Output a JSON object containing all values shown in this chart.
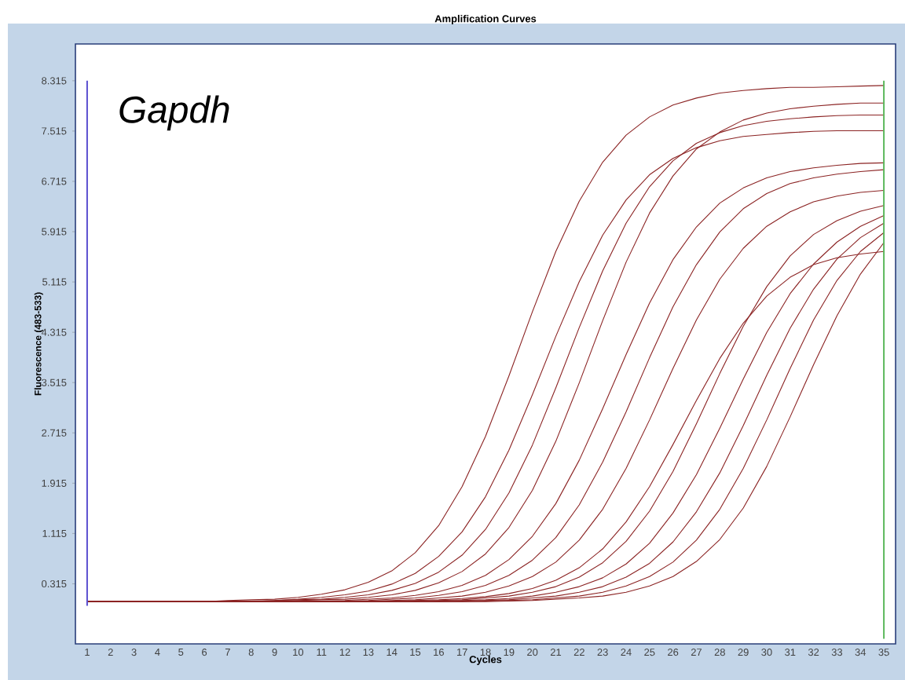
{
  "chart_data": {
    "type": "line",
    "title": "Amplification Curves",
    "xlabel": "Cycles",
    "ylabel": "Fluorescence (483-533)",
    "annotations": [
      "Gapdh"
    ],
    "x": [
      1,
      2,
      3,
      4,
      5,
      6,
      7,
      8,
      9,
      10,
      11,
      12,
      13,
      14,
      15,
      16,
      17,
      18,
      19,
      20,
      21,
      22,
      23,
      24,
      25,
      26,
      27,
      28,
      29,
      30,
      31,
      32,
      33,
      34,
      35
    ],
    "xlim": [
      0.5,
      35.5
    ],
    "ylim": [
      -0.64,
      8.9
    ],
    "xticks": [
      1,
      2,
      3,
      4,
      5,
      6,
      7,
      8,
      9,
      10,
      11,
      12,
      13,
      14,
      15,
      16,
      17,
      18,
      19,
      20,
      21,
      22,
      23,
      24,
      25,
      26,
      27,
      28,
      29,
      30,
      31,
      32,
      33,
      34,
      35
    ],
    "yticks": [
      0.315,
      1.115,
      1.915,
      2.715,
      3.515,
      4.315,
      5.115,
      5.915,
      6.715,
      7.515,
      8.315
    ],
    "grid": false,
    "marker": "none",
    "line_style": "solid",
    "ref_lines": [
      {
        "axis": "x",
        "value": 1,
        "color": "#5b4fd0"
      },
      {
        "axis": "x",
        "value": 35,
        "color": "#5cb85c"
      }
    ],
    "series": [
      {
        "color": "#8b2323",
        "values": [
          0.03,
          0.03,
          0.03,
          0.03,
          0.03,
          0.03,
          0.05,
          0.06,
          0.07,
          0.1,
          0.15,
          0.22,
          0.34,
          0.52,
          0.81,
          1.24,
          1.86,
          2.66,
          3.62,
          4.64,
          5.6,
          6.4,
          7.02,
          7.45,
          7.74,
          7.93,
          8.04,
          8.12,
          8.16,
          8.19,
          8.21,
          8.21,
          8.22,
          8.23,
          8.24
        ]
      },
      {
        "color": "#8b2323",
        "values": [
          0.03,
          0.03,
          0.03,
          0.03,
          0.03,
          0.03,
          0.03,
          0.04,
          0.05,
          0.07,
          0.1,
          0.14,
          0.2,
          0.31,
          0.48,
          0.75,
          1.14,
          1.7,
          2.44,
          3.32,
          4.25,
          5.12,
          5.86,
          6.42,
          6.82,
          7.08,
          7.25,
          7.36,
          7.43,
          7.46,
          7.49,
          7.51,
          7.52,
          7.52,
          7.52
        ]
      },
      {
        "color": "#8b2323",
        "values": [
          0.03,
          0.03,
          0.03,
          0.03,
          0.03,
          0.03,
          0.03,
          0.03,
          0.05,
          0.06,
          0.07,
          0.1,
          0.14,
          0.21,
          0.32,
          0.5,
          0.77,
          1.18,
          1.76,
          2.52,
          3.43,
          4.39,
          5.29,
          6.05,
          6.63,
          7.04,
          7.32,
          7.49,
          7.6,
          7.67,
          7.71,
          7.74,
          7.76,
          7.77,
          7.77
        ]
      },
      {
        "color": "#8b2323",
        "values": [
          0.03,
          0.03,
          0.03,
          0.03,
          0.03,
          0.03,
          0.03,
          0.03,
          0.03,
          0.05,
          0.06,
          0.07,
          0.1,
          0.14,
          0.21,
          0.33,
          0.51,
          0.79,
          1.21,
          1.8,
          2.58,
          3.51,
          4.5,
          5.43,
          6.21,
          6.8,
          7.23,
          7.5,
          7.69,
          7.8,
          7.87,
          7.91,
          7.94,
          7.96,
          7.96
        ]
      },
      {
        "color": "#8b2323",
        "values": [
          0.03,
          0.03,
          0.03,
          0.03,
          0.03,
          0.03,
          0.03,
          0.03,
          0.03,
          0.03,
          0.04,
          0.05,
          0.07,
          0.09,
          0.13,
          0.19,
          0.29,
          0.45,
          0.7,
          1.07,
          1.59,
          2.28,
          3.1,
          3.96,
          4.78,
          5.47,
          5.99,
          6.37,
          6.61,
          6.77,
          6.87,
          6.93,
          6.97,
          7.0,
          7.01
        ]
      },
      {
        "color": "#8b2323",
        "values": [
          0.03,
          0.03,
          0.03,
          0.03,
          0.03,
          0.03,
          0.03,
          0.03,
          0.03,
          0.03,
          0.03,
          0.04,
          0.05,
          0.07,
          0.09,
          0.13,
          0.19,
          0.29,
          0.45,
          0.69,
          1.05,
          1.57,
          2.25,
          3.05,
          3.91,
          4.72,
          5.39,
          5.91,
          6.28,
          6.52,
          6.68,
          6.77,
          6.83,
          6.87,
          6.9
        ]
      },
      {
        "color": "#8b2323",
        "values": [
          0.03,
          0.03,
          0.03,
          0.03,
          0.03,
          0.03,
          0.03,
          0.03,
          0.03,
          0.03,
          0.03,
          0.03,
          0.04,
          0.05,
          0.06,
          0.09,
          0.12,
          0.18,
          0.28,
          0.43,
          0.66,
          1.01,
          1.5,
          2.15,
          2.92,
          3.74,
          4.51,
          5.16,
          5.65,
          6.0,
          6.23,
          6.39,
          6.48,
          6.54,
          6.57
        ]
      },
      {
        "color": "#8b2323",
        "values": [
          0.03,
          0.03,
          0.03,
          0.03,
          0.03,
          0.03,
          0.03,
          0.03,
          0.03,
          0.03,
          0.03,
          0.03,
          0.03,
          0.04,
          0.05,
          0.06,
          0.08,
          0.11,
          0.16,
          0.24,
          0.37,
          0.57,
          0.87,
          1.3,
          1.86,
          2.53,
          3.23,
          3.9,
          4.46,
          4.89,
          5.19,
          5.39,
          5.5,
          5.56,
          5.6
        ]
      },
      {
        "color": "#8b2323",
        "values": [
          0.03,
          0.03,
          0.03,
          0.03,
          0.03,
          0.03,
          0.03,
          0.03,
          0.03,
          0.03,
          0.03,
          0.03,
          0.03,
          0.03,
          0.04,
          0.05,
          0.06,
          0.09,
          0.12,
          0.18,
          0.27,
          0.42,
          0.65,
          0.99,
          1.47,
          2.1,
          2.86,
          3.66,
          4.41,
          5.04,
          5.53,
          5.87,
          6.09,
          6.24,
          6.33
        ]
      },
      {
        "color": "#8b2323",
        "values": [
          0.03,
          0.03,
          0.03,
          0.03,
          0.03,
          0.03,
          0.03,
          0.03,
          0.03,
          0.03,
          0.03,
          0.03,
          0.03,
          0.03,
          0.03,
          0.04,
          0.05,
          0.06,
          0.08,
          0.12,
          0.18,
          0.27,
          0.41,
          0.63,
          0.96,
          1.44,
          2.05,
          2.79,
          3.57,
          4.31,
          4.93,
          5.4,
          5.75,
          6.0,
          6.17
        ]
      },
      {
        "color": "#8b2323",
        "values": [
          0.03,
          0.03,
          0.03,
          0.03,
          0.03,
          0.03,
          0.03,
          0.03,
          0.03,
          0.03,
          0.03,
          0.03,
          0.03,
          0.03,
          0.03,
          0.03,
          0.04,
          0.05,
          0.06,
          0.09,
          0.12,
          0.18,
          0.27,
          0.42,
          0.64,
          0.98,
          1.46,
          2.08,
          2.83,
          3.63,
          4.38,
          5.0,
          5.48,
          5.82,
          6.05
        ]
      },
      {
        "color": "#8b2323",
        "values": [
          0.03,
          0.03,
          0.03,
          0.03,
          0.03,
          0.03,
          0.03,
          0.03,
          0.03,
          0.03,
          0.03,
          0.03,
          0.03,
          0.03,
          0.03,
          0.03,
          0.03,
          0.04,
          0.05,
          0.06,
          0.09,
          0.12,
          0.18,
          0.28,
          0.43,
          0.66,
          1.01,
          1.5,
          2.15,
          2.92,
          3.74,
          4.51,
          5.14,
          5.6,
          5.9
        ]
      },
      {
        "color": "#8b2323",
        "values": [
          0.03,
          0.03,
          0.03,
          0.03,
          0.03,
          0.03,
          0.03,
          0.03,
          0.03,
          0.03,
          0.03,
          0.03,
          0.03,
          0.03,
          0.03,
          0.03,
          0.03,
          0.03,
          0.04,
          0.05,
          0.07,
          0.09,
          0.12,
          0.18,
          0.28,
          0.43,
          0.67,
          1.02,
          1.52,
          2.18,
          2.97,
          3.8,
          4.58,
          5.24,
          5.74
        ]
      }
    ]
  }
}
